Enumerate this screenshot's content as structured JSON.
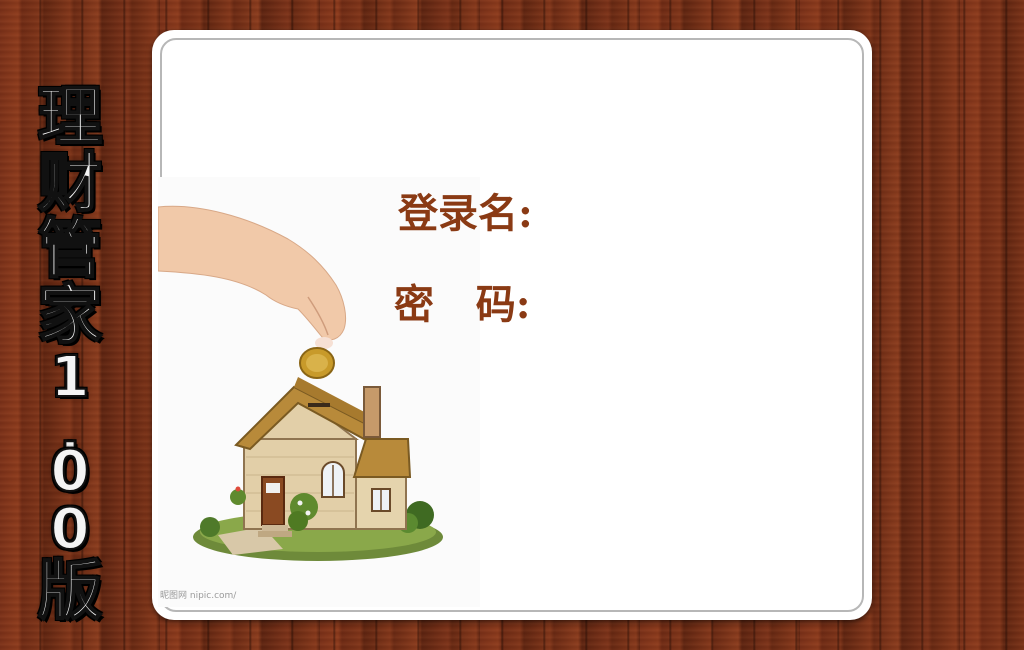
{
  "app": {
    "title_chars": [
      "理",
      "财",
      "管",
      "家",
      "1",
      ".",
      "0",
      "0",
      "版"
    ]
  },
  "login": {
    "username_label": "登录名:",
    "password_label": "密   码:",
    "username_value": "",
    "password_value": ""
  },
  "illustration": {
    "watermark": "昵图网 nipic.com/"
  },
  "colors": {
    "label": "#8a3a14",
    "card": "#ffffff",
    "wood": "#7a3018"
  }
}
